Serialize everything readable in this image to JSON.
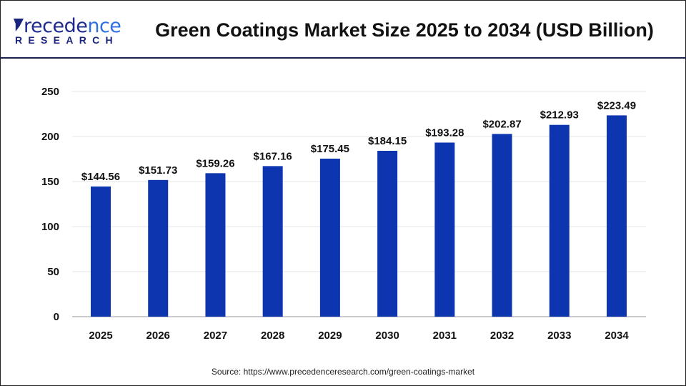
{
  "header": {
    "logo_text": "Precedence RESEARCH",
    "title": "Green Coatings Market Size 2025 to 2034 (USD Billion)"
  },
  "source": "Source: https://www.precedenceresearch.com/green-coatings-market",
  "chart_data": {
    "type": "bar",
    "title": "Green Coatings Market Size 2025 to 2034 (USD Billion)",
    "categories": [
      "2025",
      "2026",
      "2027",
      "2028",
      "2029",
      "2030",
      "2031",
      "2032",
      "2033",
      "2034"
    ],
    "values": [
      144.56,
      151.73,
      159.26,
      167.16,
      175.45,
      184.15,
      193.28,
      202.87,
      212.93,
      223.49
    ],
    "data_labels": [
      "$144.56",
      "$151.73",
      "$159.26",
      "$167.16",
      "$175.45",
      "$184.15",
      "$193.28",
      "$202.87",
      "$212.93",
      "$223.49"
    ],
    "yticks": [
      0,
      50,
      100,
      150,
      200,
      250
    ],
    "ylim": [
      0,
      250
    ],
    "grid": true,
    "bar_color": "#0d35b0",
    "xlabel": "",
    "ylabel": ""
  }
}
